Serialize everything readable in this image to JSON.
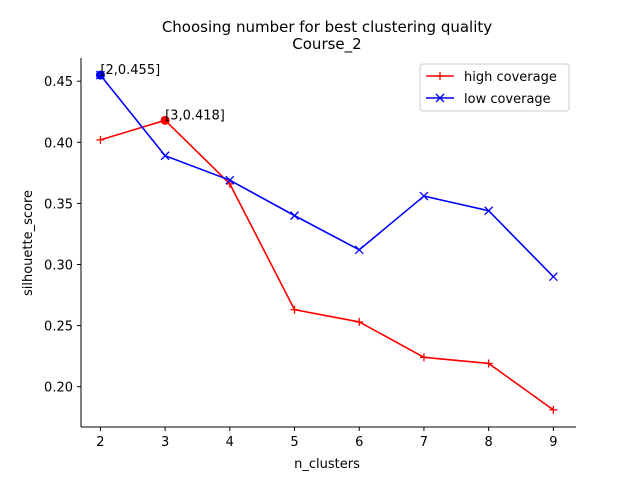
{
  "chart_data": {
    "type": "line",
    "title": "Choosing number for best clustering quality",
    "subtitle": "Course_2",
    "xlabel": "n_clusters",
    "ylabel": "silhouette_score",
    "x": [
      2,
      3,
      4,
      5,
      6,
      7,
      8,
      9
    ],
    "xlim": [
      1.7,
      9.35
    ],
    "ylim": [
      0.167,
      0.469
    ],
    "x_ticks": [
      2,
      3,
      4,
      5,
      6,
      7,
      8,
      9
    ],
    "y_ticks": [
      0.2,
      0.25,
      0.3,
      0.35,
      0.4,
      0.45
    ],
    "y_tick_labels": [
      "0.20",
      "0.25",
      "0.30",
      "0.35",
      "0.40",
      "0.45"
    ],
    "grid": false,
    "legend_position": "top-right",
    "series": [
      {
        "name": "high coverage",
        "color": "#ff0000",
        "marker": "plus",
        "values": [
          0.402,
          0.418,
          0.366,
          0.263,
          0.253,
          0.224,
          0.219,
          0.181
        ]
      },
      {
        "name": "low coverage",
        "color": "#0000ff",
        "marker": "x",
        "values": [
          0.455,
          0.389,
          0.369,
          0.34,
          0.312,
          0.356,
          0.344,
          0.29
        ]
      }
    ],
    "highlights": [
      {
        "x": 2,
        "y": 0.455,
        "label": "[2,0.455]",
        "color": "#0000ff"
      },
      {
        "x": 3,
        "y": 0.418,
        "label": "[3,0.418]",
        "color": "#ff0000"
      }
    ]
  }
}
